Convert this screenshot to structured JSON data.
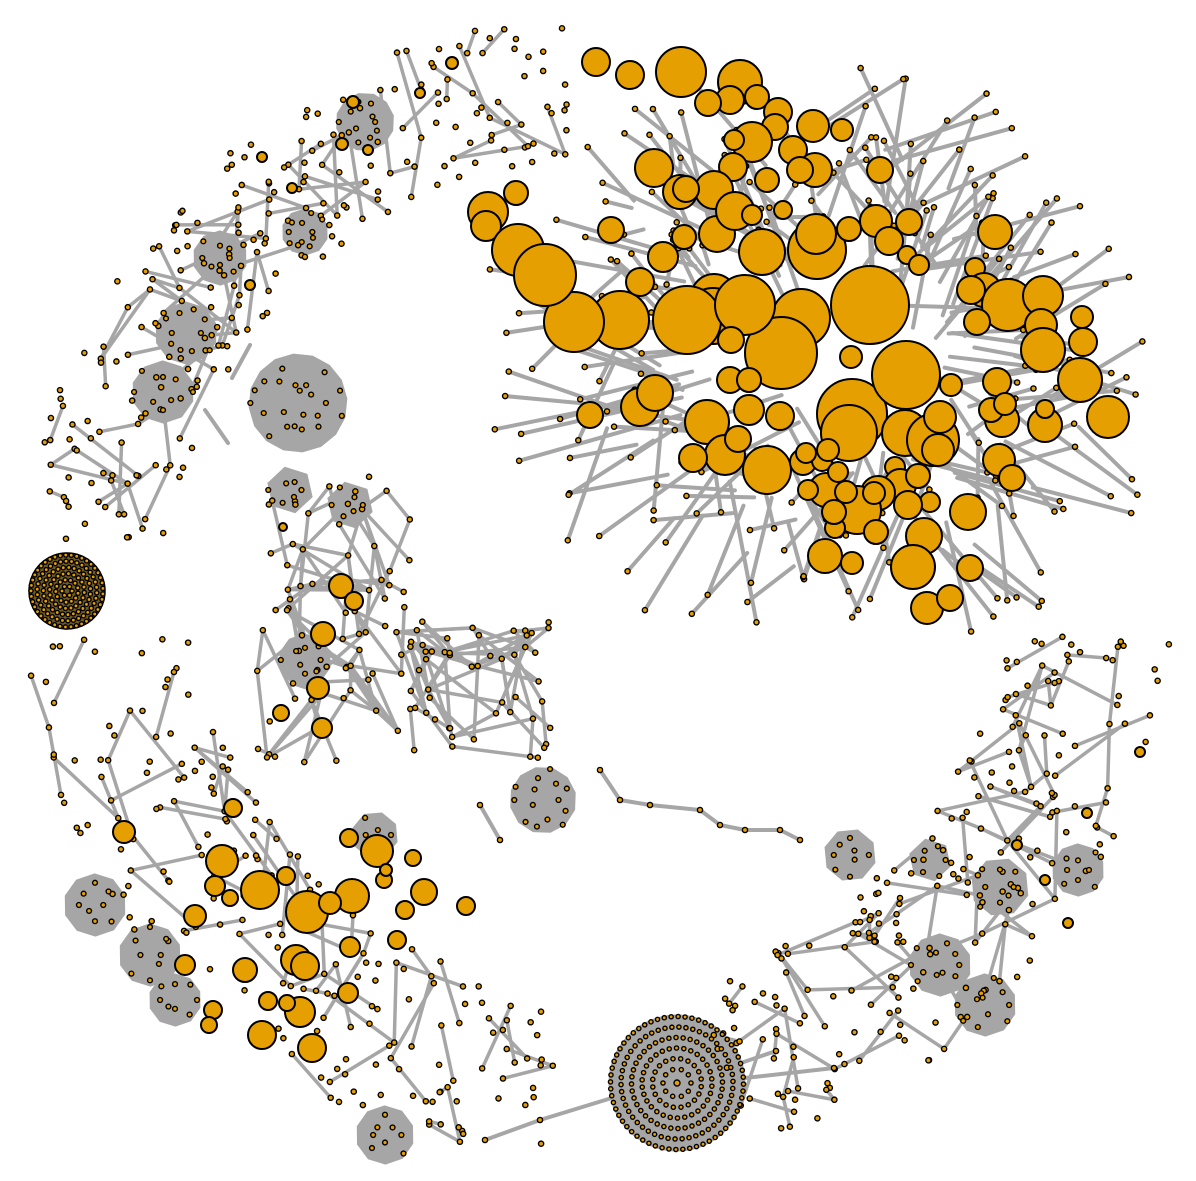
{
  "colors": {
    "background": "#ffffff",
    "edge": "#a6a6a6",
    "node_fill": "#e69f00",
    "node_stroke": "#000000",
    "hub_fill": "#a6a6a6"
  },
  "diagram": {
    "type": "network-graph",
    "node_shape": "circle",
    "labels": "none",
    "clusters": [
      "large-dense-component",
      "upper-left-arc-component",
      "left-center-chain-component",
      "lower-left-component",
      "lower-right-arc-component",
      "bottom-center-star-component",
      "isolated-ring-cluster",
      "center-small-cliques"
    ]
  }
}
